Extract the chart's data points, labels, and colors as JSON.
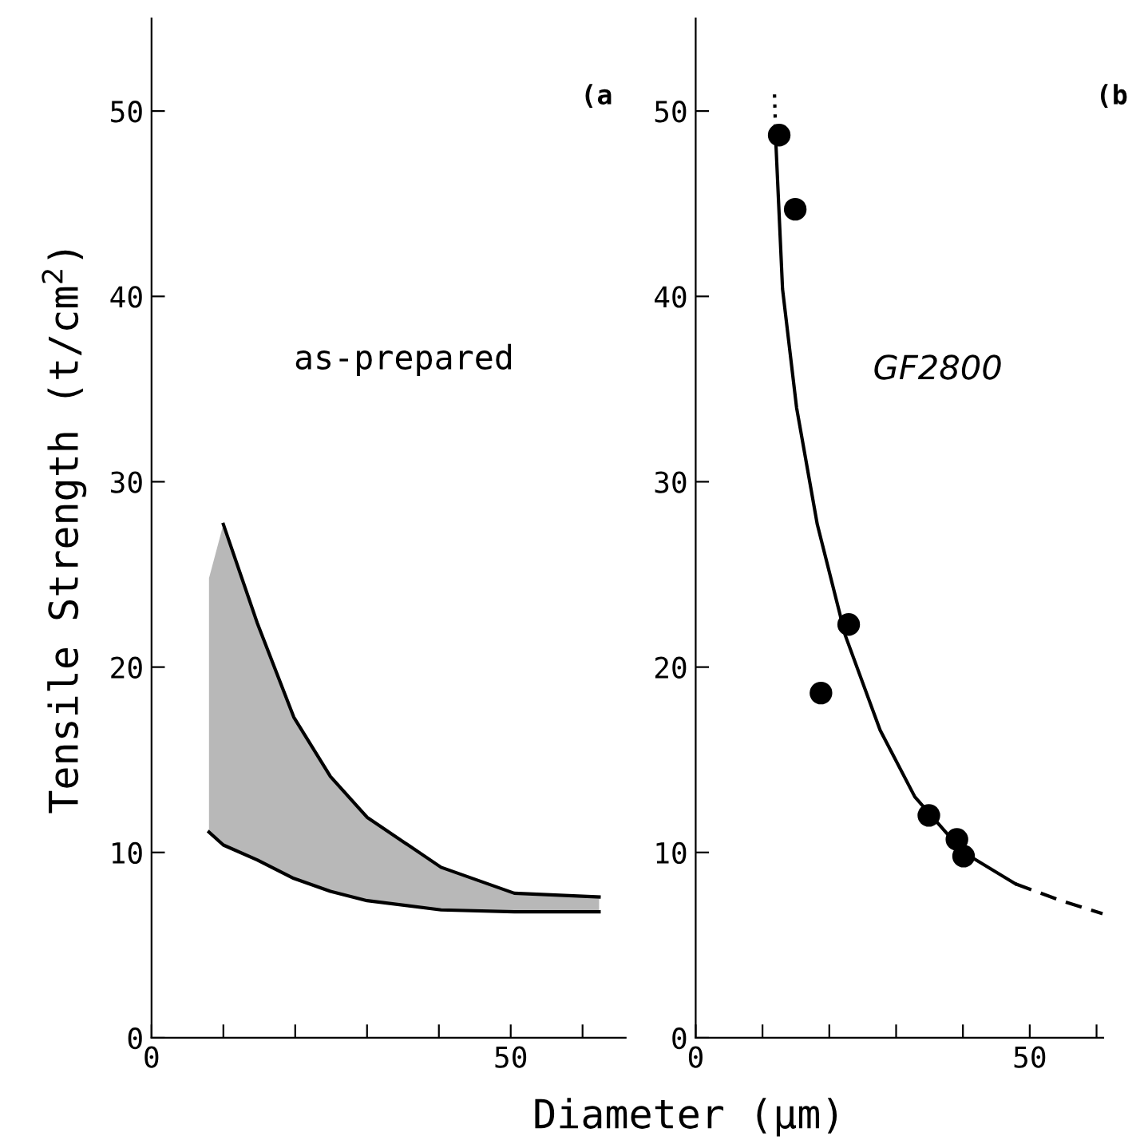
{
  "chart_data": [
    {
      "type": "line",
      "ylabel": "Tensile Strength (t/cm$^{2}$)",
      "xlim": [
        0,
        66
      ],
      "ylim": [
        0,
        55
      ],
      "xticks": [
        0,
        {
          "value": 10,
          "label": null
        },
        {
          "value": 20,
          "label": null
        },
        {
          "value": 30,
          "label": null
        },
        {
          "value": 40,
          "label": null
        },
        50,
        {
          "value": 60,
          "label": null
        }
      ],
      "yticks": [
        0,
        10,
        20,
        30,
        40,
        50
      ],
      "grid": false,
      "legend": false,
      "annotations": [
        "(a",
        "as-prepared"
      ],
      "series": [
        {
          "color": "#000000",
          "line_style": "solid",
          "x": [
            8,
            10,
            14.7,
            19.8,
            24.9,
            30,
            40.3,
            50.5,
            62.3
          ],
          "values": [
            11.1,
            10.4,
            9.6,
            8.6,
            7.9,
            7.4,
            6.9,
            6.8,
            6.8
          ],
          "lower": [
            11.1,
            10.4,
            9.6,
            8.6,
            7.9,
            7.4,
            6.9,
            6.8,
            6.8
          ],
          "upper": [
            24.8,
            27.7,
            22.4,
            17.3,
            14.1,
            11.9,
            9.2,
            7.8,
            7.6
          ]
        },
        {
          "color": "#000000",
          "line_style": "solid",
          "x": [
            10,
            14.7,
            19.8,
            24.9,
            30,
            40.3,
            50.5,
            62.3
          ],
          "values": [
            27.7,
            22.4,
            17.3,
            14.1,
            11.9,
            9.2,
            7.8,
            7.6
          ]
        }
      ]
    },
    {
      "type": "line",
      "xlabel": "Diameter (μm)",
      "xlim": [
        0,
        61
      ],
      "ylim": [
        0,
        55
      ],
      "xticks": [
        0,
        {
          "value": 10,
          "label": null
        },
        {
          "value": 20,
          "label": null
        },
        {
          "value": 30,
          "label": null
        },
        {
          "value": 40,
          "label": null
        },
        50,
        {
          "value": 60,
          "label": null
        }
      ],
      "yticks": [
        0,
        10,
        20,
        30,
        40,
        50
      ],
      "grid": false,
      "legend": false,
      "annotations": [
        "(b",
        "GF2800"
      ],
      "series": [
        {
          "type": "scatter",
          "color": "#000000",
          "marker": "circle",
          "x": [
            12.5,
            14.9,
            18.75,
            22.9,
            34.9,
            39.1,
            40.1
          ],
          "values": [
            48.7,
            44.7,
            18.6,
            22.3,
            12.0,
            10.7,
            9.8
          ]
        },
        {
          "color": "#000000",
          "line_style": "dotted",
          "x": [
            11.8,
            12.0
          ],
          "values": [
            50.9,
            48.3
          ]
        },
        {
          "color": "#000000",
          "line_style": "solid",
          "x": [
            12.0,
            13.0,
            15.1,
            18.2,
            22.4,
            27.6,
            32.8,
            40.1,
            47.9
          ],
          "values": [
            48.3,
            40.4,
            34.0,
            27.7,
            21.7,
            16.6,
            13.0,
            10.0,
            8.3
          ]
        },
        {
          "color": "#000000",
          "line_style": "dashed",
          "x": [
            47.9,
            54.7,
            60.9
          ],
          "values": [
            8.3,
            7.4,
            6.7
          ]
        }
      ]
    }
  ]
}
